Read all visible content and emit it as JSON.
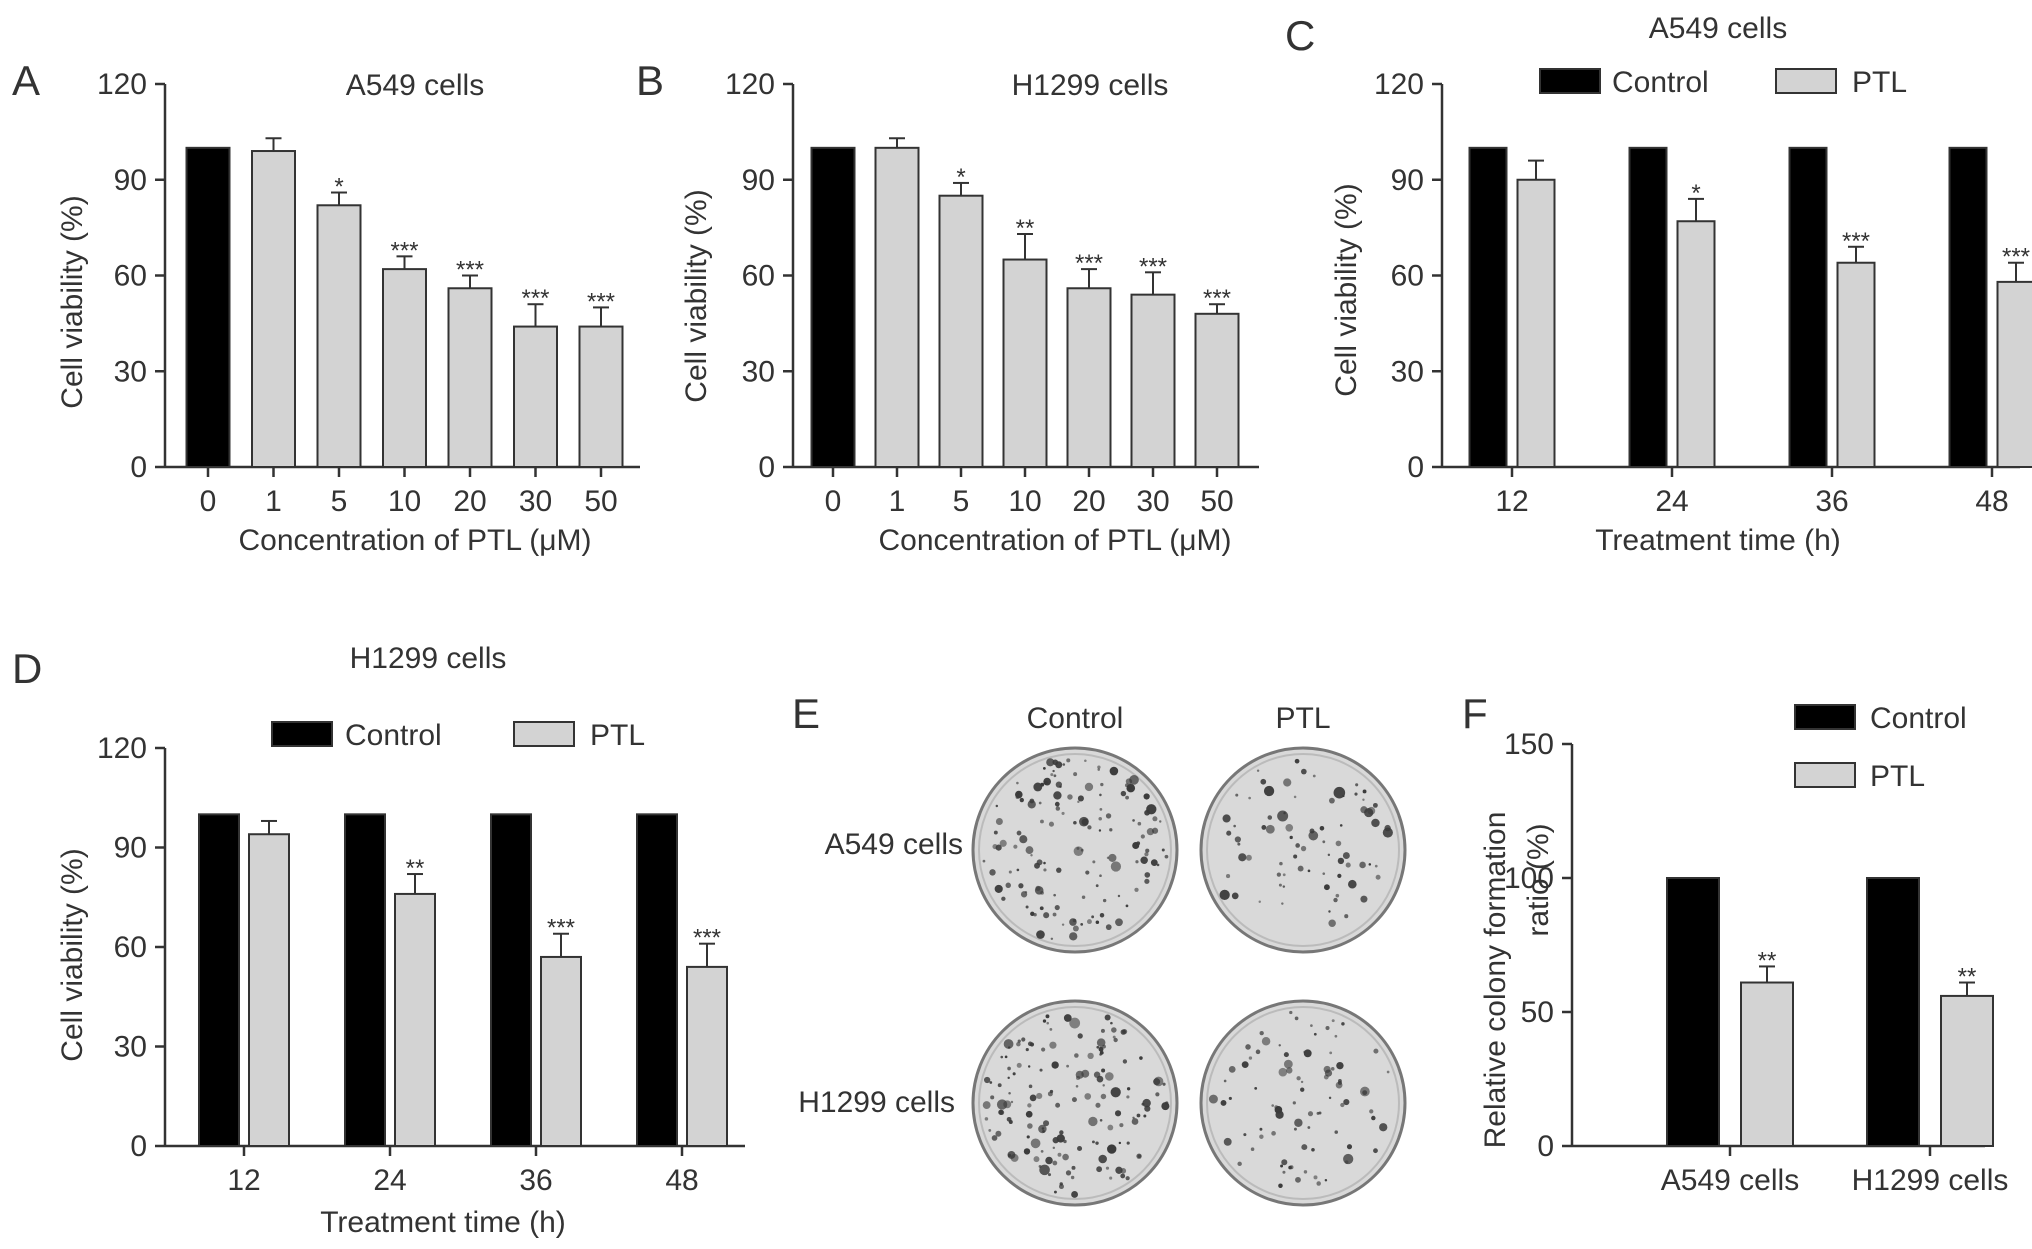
{
  "colors": {
    "control": "#000000",
    "ptl": "#d3d3d3",
    "axis": "#333333",
    "dish_bg": "#d9d9d9",
    "colony": "#3a3a3a"
  },
  "panel_letters": [
    "A",
    "B",
    "C",
    "D",
    "E",
    "F"
  ],
  "chart_data": [
    {
      "panel": "A",
      "type": "bar",
      "title": "A549 cells",
      "xlabel": "Concentration of PTL (μM)",
      "ylabel": "Cell viability (%)",
      "ylim": [
        0,
        120
      ],
      "yticks": [
        0,
        30,
        60,
        90,
        120
      ],
      "categories": [
        "0",
        "1",
        "5",
        "10",
        "20",
        "30",
        "50"
      ],
      "values": [
        100,
        99,
        82,
        62,
        56,
        44,
        44
      ],
      "errors": [
        0,
        4,
        4,
        4,
        4,
        7,
        6
      ],
      "significance": [
        "",
        "",
        "*",
        "***",
        "***",
        "***",
        "***"
      ],
      "bar_colors": [
        "control",
        "ptl",
        "ptl",
        "ptl",
        "ptl",
        "ptl",
        "ptl"
      ]
    },
    {
      "panel": "B",
      "type": "bar",
      "title": "H1299 cells",
      "xlabel": "Concentration of PTL (μM)",
      "ylabel": "Cell viability (%)",
      "ylim": [
        0,
        120
      ],
      "yticks": [
        0,
        30,
        60,
        90,
        120
      ],
      "categories": [
        "0",
        "1",
        "5",
        "10",
        "20",
        "30",
        "50"
      ],
      "values": [
        100,
        100,
        85,
        65,
        56,
        54,
        48
      ],
      "errors": [
        0,
        3,
        4,
        8,
        6,
        7,
        3
      ],
      "significance": [
        "",
        "",
        "*",
        "**",
        "***",
        "***",
        "***"
      ],
      "bar_colors": [
        "control",
        "ptl",
        "ptl",
        "ptl",
        "ptl",
        "ptl",
        "ptl"
      ]
    },
    {
      "panel": "C",
      "type": "bar",
      "title": "A549 cells",
      "xlabel": "Treatment time (h)",
      "ylabel": "Cell viability (%)",
      "ylim": [
        0,
        120
      ],
      "yticks": [
        0,
        30,
        60,
        90,
        120
      ],
      "categories": [
        "12",
        "24",
        "36",
        "48"
      ],
      "series": [
        {
          "name": "Control",
          "values": [
            100,
            100,
            100,
            100
          ],
          "errors": [
            0,
            0,
            0,
            0
          ],
          "significance": [
            "",
            "",
            "",
            ""
          ]
        },
        {
          "name": "PTL",
          "values": [
            90,
            77,
            64,
            58
          ],
          "errors": [
            6,
            7,
            5,
            6
          ],
          "significance": [
            "",
            "*",
            "***",
            "***"
          ]
        }
      ],
      "legend": "top"
    },
    {
      "panel": "D",
      "type": "bar",
      "title": "H1299 cells",
      "xlabel": "Treatment time (h)",
      "ylabel": "Cell viability (%)",
      "ylim": [
        0,
        120
      ],
      "yticks": [
        0,
        30,
        60,
        90,
        120
      ],
      "categories": [
        "12",
        "24",
        "36",
        "48"
      ],
      "series": [
        {
          "name": "Control",
          "values": [
            100,
            100,
            100,
            100
          ],
          "errors": [
            0,
            0,
            0,
            0
          ],
          "significance": [
            "",
            "",
            "",
            ""
          ]
        },
        {
          "name": "PTL",
          "values": [
            94,
            76,
            57,
            54
          ],
          "errors": [
            4,
            6,
            7,
            7
          ],
          "significance": [
            "",
            "**",
            "***",
            "***"
          ]
        }
      ],
      "legend": "top"
    },
    {
      "panel": "F",
      "type": "bar",
      "title": "",
      "xlabel": "",
      "ylabel": "Relative colony formation ratio (%)",
      "ylabel_lines": [
        "Relative colony formation",
        "ratio (%)"
      ],
      "ylim": [
        0,
        150
      ],
      "yticks": [
        0,
        50,
        100,
        150
      ],
      "categories": [
        "A549 cells",
        "H1299 cells"
      ],
      "series": [
        {
          "name": "Control",
          "values": [
            100,
            100
          ],
          "errors": [
            0,
            0
          ],
          "significance": [
            "",
            ""
          ]
        },
        {
          "name": "PTL",
          "values": [
            61,
            56
          ],
          "errors": [
            6,
            5
          ],
          "significance": [
            "**",
            "**"
          ]
        }
      ],
      "legend": "top-right"
    }
  ],
  "panel_e": {
    "columns": [
      "Control",
      "PTL"
    ],
    "rows": [
      "A549 cells",
      "H1299 cells"
    ],
    "colony_density": [
      [
        0.85,
        0.45
      ],
      [
        0.9,
        0.5
      ]
    ]
  }
}
